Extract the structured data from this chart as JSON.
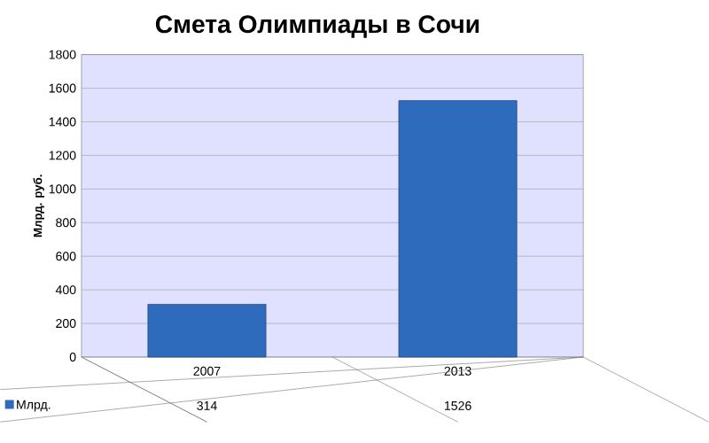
{
  "chart_data": {
    "type": "bar",
    "title": "Смета Олимпиады в Сочи",
    "ylabel": "Млрд. руб.",
    "categories": [
      "2007",
      "2013"
    ],
    "series": [
      {
        "name": "Млрд.",
        "color": "#2f6bbd",
        "values": [
          314,
          1526
        ]
      }
    ],
    "ylim": [
      0,
      1800
    ],
    "yticks": [
      0,
      200,
      400,
      600,
      800,
      1000,
      1200,
      1400,
      1600,
      1800
    ],
    "grid": "y",
    "data_labels": true,
    "legend": "bottom"
  }
}
